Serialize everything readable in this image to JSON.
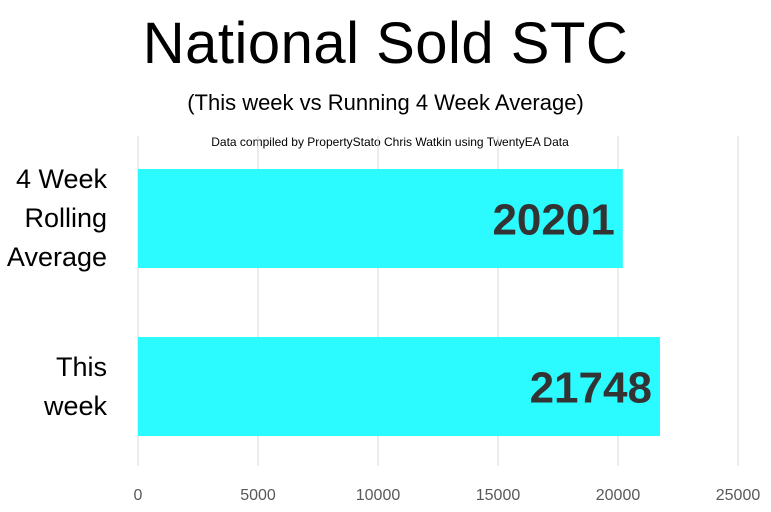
{
  "chart_data": {
    "type": "bar",
    "orientation": "horizontal",
    "title": "National Sold STC",
    "subtitle": "(This week vs Running 4 Week Average)",
    "annotation": "Data compiled by PropertyStato Chris Watkin using TwentyEA Data",
    "categories": [
      [
        "4 Week",
        "Rolling",
        "Average"
      ],
      [
        "This",
        "week"
      ]
    ],
    "values": [
      20201,
      21748
    ],
    "data_labels": [
      "20201",
      "21748"
    ],
    "xlim": [
      0,
      25000
    ],
    "xticks": [
      0,
      5000,
      10000,
      15000,
      20000,
      25000
    ],
    "xtick_labels": [
      "0",
      "5000",
      "10000",
      "15000",
      "20000",
      "25000"
    ],
    "grid": true,
    "bar_color": "#2BFBFF",
    "label_color": "#333333",
    "grid_color": "#D9D9D9"
  }
}
